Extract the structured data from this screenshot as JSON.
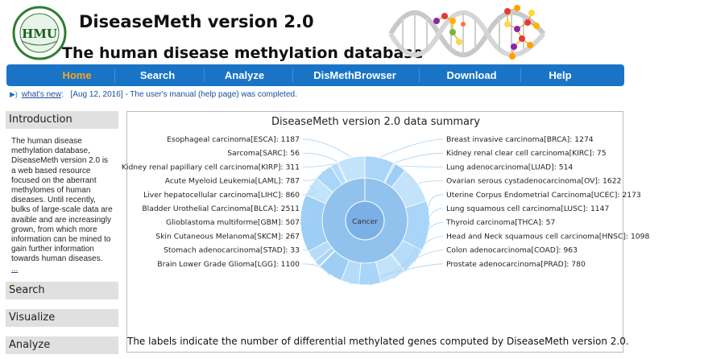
{
  "header": {
    "title": "DiseaseMeth version 2.0",
    "subtitle": "The human disease methylation database",
    "logo_text": "HMU"
  },
  "nav": {
    "items": [
      {
        "label": "Home",
        "active": true
      },
      {
        "label": "Search",
        "active": false
      },
      {
        "label": "Analyze",
        "active": false
      },
      {
        "label": "DisMethBrowser",
        "active": false
      },
      {
        "label": "Download",
        "active": false
      },
      {
        "label": "Help",
        "active": false
      }
    ]
  },
  "news": {
    "label": "what's new",
    "colon": ":",
    "date": "[Aug 12, 2016]",
    "text": "- The user's manual (help page) was completed."
  },
  "sidebar": {
    "intro_title": "Introduction",
    "intro_text": "The human disease methylation database, DiseaseMeth version 2.0 is a web based resource focused on the aberrant methylomes of human diseases. Until recently, bulks of large-scale data are avaible and are increasingly grown, from which more information can be mined to gain further information towards human diseases.",
    "more": "...",
    "search": "Search",
    "visualize": "Visualize",
    "analyze": "Analyze"
  },
  "summary": {
    "title": "DiseaseMeth version 2.0 data summary",
    "caption": "The labels indicate the number of differential methylated genes computed by DiseaseMeth version 2.0."
  },
  "colors": {
    "nav_bg": "#1a74c6",
    "nav_active": "#f5a623",
    "inner_ring": "#7fb1e3",
    "outer_ring": "#a9d6f9"
  },
  "chart_data": {
    "type": "pie",
    "title": "DiseaseMeth version 2.0 data summary",
    "center_label": "Cancer",
    "series": [
      {
        "label": "Breast invasive carcinoma[BRCA]: 1274",
        "value": 1274
      },
      {
        "label": "Kidney renal clear cell carcinoma[KIRC]: 75",
        "value": 75
      },
      {
        "label": "Lung adenocarcinoma[LUAD]: 514",
        "value": 514
      },
      {
        "label": "Ovarian serous cystadenocarcinoma[OV]: 1622",
        "value": 1622
      },
      {
        "label": "Uterine Corpus Endometrial Carcinoma[UCEC]: 2173",
        "value": 2173
      },
      {
        "label": "Lung squamous cell carcinoma[LUSC]: 1147",
        "value": 1147
      },
      {
        "label": "Thyroid carcinoma[THCA]: 57",
        "value": 57
      },
      {
        "label": "Head and Neck squamous cell carcinoma[HNSC]: 1098",
        "value": 1098
      },
      {
        "label": "Colon adenocarcinoma[COAD]: 963",
        "value": 963
      },
      {
        "label": "Prostate adenocarcinoma[PRAD]: 780",
        "value": 780
      },
      {
        "label": "Brain Lower Grade Glioma[LGG]: 1100",
        "value": 1100
      },
      {
        "label": "Stomach adenocarcinoma[STAD]: 33",
        "value": 33
      },
      {
        "label": "Skin Cutaneous Melanoma[SKCM]: 267",
        "value": 267
      },
      {
        "label": "Glioblastoma multiforme[GBM]: 507",
        "value": 507
      },
      {
        "label": "Bladder Urothelial Carcinoma[BLCA]: 2511",
        "value": 2511
      },
      {
        "label": "Liver hepatocellular carcinoma[LIHC]: 860",
        "value": 860
      },
      {
        "label": "Acute Myeloid Leukemia[LAML]: 787",
        "value": 787
      },
      {
        "label": "Kidney renal papillary cell carcinoma[KIRP]: 311",
        "value": 311
      },
      {
        "label": "Sarcoma[SARC]: 56",
        "value": 56
      },
      {
        "label": "Esophageal carcinoma[ESCA]: 1187",
        "value": 1187
      }
    ]
  }
}
